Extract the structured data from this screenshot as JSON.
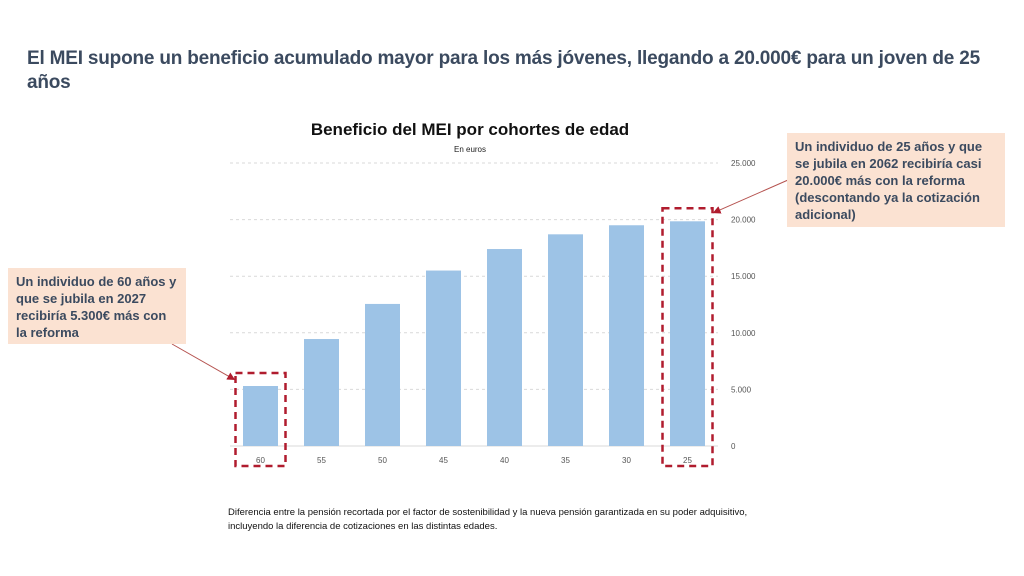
{
  "headline": "El MEI supone un beneficio acumulado mayor para los más jóvenes, llegando a 20.000€ para un joven de 25 años",
  "callouts": {
    "right": "Un individuo de 25 años y que se jubila en 2062 recibiría casi 20.000€ más con la reforma (descontando ya la cotización adicional)",
    "left": "Un individuo de 60 años y que se jubila en 2027 recibiría 5.300€ más con la reforma"
  },
  "footnote": "Diferencia entre la pensión recortada por el factor de sostenibilidad y la nueva pensión garantizada en su poder adquisitivo, incluyendo la diferencia de cotizaciones en las distintas edades.",
  "colors": {
    "bar": "#9dc3e6",
    "highlight_box": "#b01c2e",
    "callout_bg": "#fbe2d2",
    "headline": "#3b4a5f"
  },
  "chart_data": {
    "type": "bar",
    "title": "Beneficio del MEI por cohortes de edad",
    "subtitle": "En euros",
    "xlabel": "",
    "ylabel": "",
    "categories": [
      "60",
      "55",
      "50",
      "45",
      "40",
      "35",
      "30",
      "25"
    ],
    "values": [
      5300,
      9450,
      12550,
      15500,
      17400,
      18700,
      19500,
      19850
    ],
    "ylim": [
      0,
      25000
    ],
    "yticks": [
      0,
      5000,
      10000,
      15000,
      20000,
      25000
    ],
    "ytick_labels": [
      "0",
      "5.000",
      "10.000",
      "15.000",
      "20.000",
      "25.000"
    ],
    "y_axis_side": "right",
    "grid": true,
    "highlighted_categories": [
      "60",
      "25"
    ]
  }
}
